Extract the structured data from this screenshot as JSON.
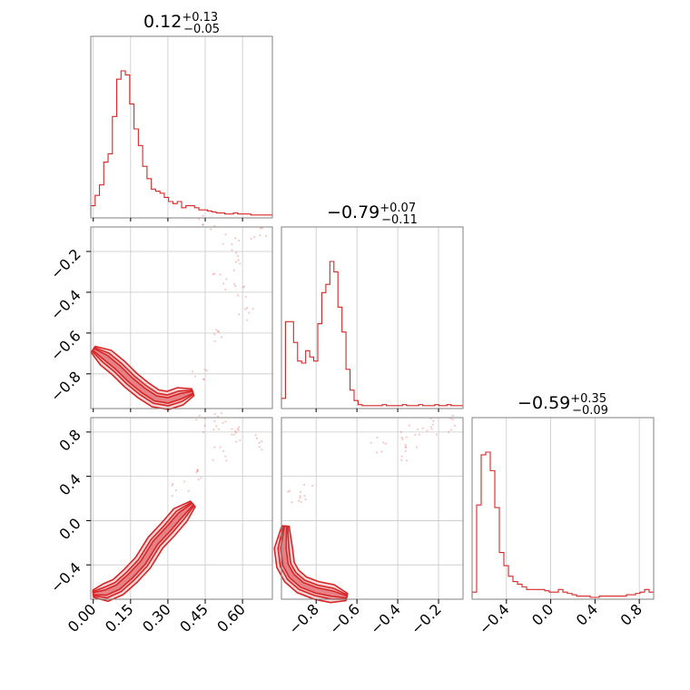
{
  "chart_data": {
    "type": "corner",
    "color": "#d62728",
    "grid": true,
    "parameters": [
      {
        "title": {
          "median": "0.12",
          "plus": "+0.13",
          "minus": "−0.05"
        },
        "range": [
          -0.01,
          0.72
        ],
        "ticks": [
          0.0,
          0.15,
          0.3,
          0.45,
          0.6
        ],
        "tick_labels": [
          "0.00",
          "0.15",
          "0.30",
          "0.45",
          "0.60"
        ],
        "histogram": [
          10,
          20,
          30,
          52,
          60,
          96,
          132,
          140,
          136,
          108,
          84,
          68,
          48,
          36,
          26,
          24,
          22,
          18,
          14,
          12,
          14,
          8,
          10,
          10,
          8,
          6,
          6,
          5,
          4,
          3,
          3,
          2,
          2,
          3,
          2,
          2,
          2,
          1,
          1,
          1,
          1,
          1
        ]
      },
      {
        "title": {
          "median": "−0.79",
          "plus": "+0.07",
          "minus": "−0.11"
        },
        "range": [
          -0.97,
          -0.08
        ],
        "ticks": [
          -0.8,
          -0.6,
          -0.4,
          -0.2
        ],
        "tick_labels": [
          "−0.8",
          "−0.6",
          "−0.4",
          "−0.2"
        ],
        "y_ticks": [
          -0.8,
          -0.6,
          -0.4,
          -0.2
        ],
        "histogram": [
          8,
          82,
          82,
          62,
          44,
          42,
          54,
          48,
          44,
          80,
          110,
          118,
          140,
          130,
          96,
          72,
          36,
          16,
          6,
          2,
          1,
          1,
          1,
          1,
          1,
          2,
          1,
          1,
          1,
          1,
          2,
          1,
          1,
          1,
          2,
          1,
          1,
          1,
          2,
          1,
          1,
          2,
          1,
          1,
          1
        ]
      },
      {
        "title": {
          "median": "−0.59",
          "plus": "+0.35",
          "minus": "−0.09"
        },
        "range": [
          -0.71,
          0.93
        ],
        "ticks": [
          -0.4,
          0.0,
          0.4,
          0.8
        ],
        "tick_labels": [
          "−0.4",
          "0.0",
          "0.4",
          "0.8"
        ],
        "histogram": [
          4,
          70,
          108,
          110,
          96,
          68,
          34,
          24,
          16,
          12,
          10,
          8,
          6,
          6,
          6,
          6,
          5,
          4,
          4,
          6,
          4,
          3,
          2,
          1,
          1,
          1,
          0,
          0,
          1,
          1,
          1,
          1,
          1,
          1,
          2,
          2,
          3,
          4,
          6,
          4
        ]
      }
    ],
    "pairs": [
      {
        "x_param": 0,
        "y_param": 1,
        "ridge": [
          [
            0.0,
            -0.68
          ],
          [
            0.05,
            -0.72
          ],
          [
            0.1,
            -0.77
          ],
          [
            0.15,
            -0.83
          ],
          [
            0.2,
            -0.88
          ],
          [
            0.25,
            -0.92
          ],
          [
            0.3,
            -0.93
          ],
          [
            0.35,
            -0.91
          ],
          [
            0.4,
            -0.89
          ]
        ],
        "scatter_cloud": [
          [
            0.46,
            -0.05
          ],
          [
            0.55,
            -0.15
          ],
          [
            0.6,
            -0.25
          ],
          [
            0.5,
            -0.35
          ],
          [
            0.62,
            -0.5
          ],
          [
            0.48,
            -0.6
          ],
          [
            0.66,
            -0.1
          ],
          [
            0.42,
            -0.8
          ],
          [
            0.58,
            -0.4
          ]
        ]
      },
      {
        "x_param": 0,
        "y_param": 2,
        "ridge": [
          [
            0.0,
            -0.66
          ],
          [
            0.05,
            -0.65
          ],
          [
            0.1,
            -0.6
          ],
          [
            0.15,
            -0.5
          ],
          [
            0.2,
            -0.38
          ],
          [
            0.25,
            -0.2
          ],
          [
            0.3,
            -0.08
          ],
          [
            0.35,
            0.05
          ],
          [
            0.4,
            0.15
          ]
        ],
        "scatter_cloud": [
          [
            0.45,
            0.88
          ],
          [
            0.55,
            0.82
          ],
          [
            0.6,
            0.75
          ],
          [
            0.5,
            0.6
          ],
          [
            0.4,
            0.45
          ],
          [
            0.35,
            0.3
          ],
          [
            0.65,
            0.7
          ],
          [
            0.48,
            0.9
          ]
        ]
      },
      {
        "x_param": 1,
        "y_param": 2,
        "ridge": [
          [
            -0.95,
            -0.05
          ],
          [
            -0.96,
            -0.25
          ],
          [
            -0.95,
            -0.4
          ],
          [
            -0.92,
            -0.5
          ],
          [
            -0.87,
            -0.58
          ],
          [
            -0.8,
            -0.63
          ],
          [
            -0.72,
            -0.66
          ],
          [
            -0.65,
            -0.69
          ]
        ],
        "scatter_cloud": [
          [
            -0.9,
            0.2
          ],
          [
            -0.85,
            0.25
          ],
          [
            -0.5,
            0.68
          ],
          [
            -0.4,
            0.72
          ],
          [
            -0.3,
            0.8
          ],
          [
            -0.2,
            0.85
          ],
          [
            -0.12,
            0.88
          ],
          [
            -0.35,
            0.6
          ]
        ]
      }
    ]
  }
}
